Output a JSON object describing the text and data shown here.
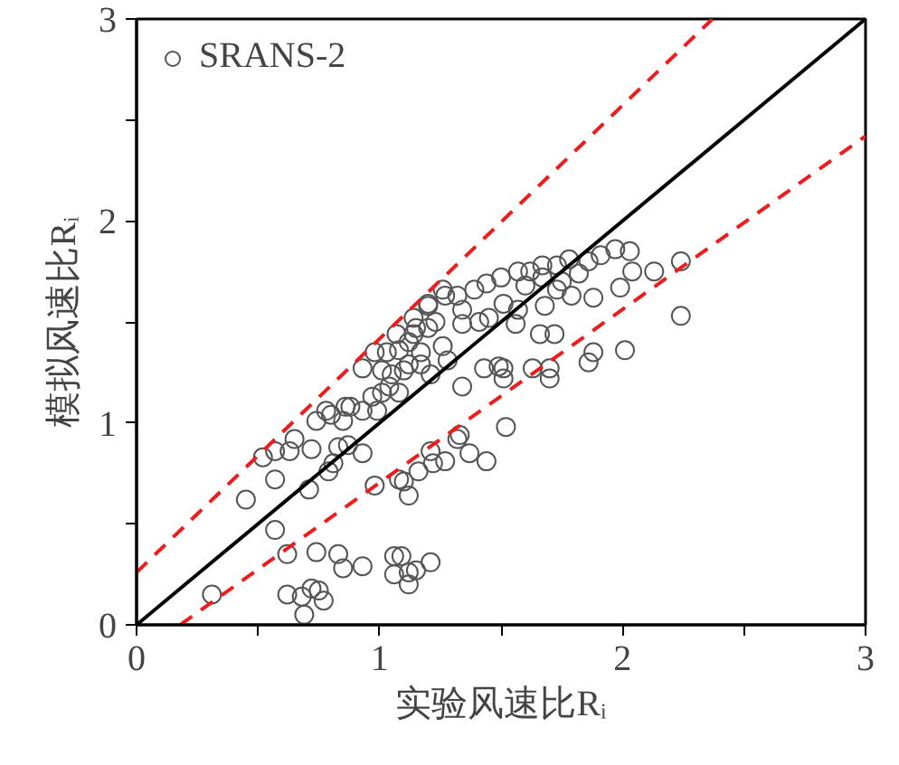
{
  "chart_data": {
    "type": "scatter",
    "xlabel": "实验风速比Rᵢ",
    "ylabel": "模拟风速比Rᵢ",
    "xlim": [
      0,
      3
    ],
    "ylim": [
      0,
      3
    ],
    "xticks": [
      0,
      {
        "value": 0.5,
        "label": null
      },
      1,
      {
        "value": 1.5,
        "label": null
      },
      2,
      {
        "value": 2.5,
        "label": null
      },
      3
    ],
    "yticks": [
      0,
      {
        "value": 0.5,
        "label": null
      },
      1,
      {
        "value": 1.5,
        "label": null
      },
      2,
      {
        "value": 2.5,
        "label": null
      },
      3
    ],
    "grid": false,
    "legend": "top left",
    "series": [
      {
        "name": "SRANS-2",
        "color": "#555555",
        "marker": "circle",
        "x": [
          0.31,
          0.62,
          0.68,
          0.72,
          0.75,
          0.77,
          0.69,
          0.62,
          0.74,
          0.83,
          0.85,
          0.93,
          1.06,
          1.09,
          1.06,
          1.12,
          1.15,
          1.21,
          1.12,
          0.57,
          0.45,
          0.57,
          0.71,
          0.79,
          0.81,
          0.83,
          0.87,
          0.93,
          0.98,
          1.08,
          1.12,
          1.1,
          1.21,
          1.16,
          1.22,
          1.27,
          1.32,
          0.52,
          0.57,
          0.63,
          0.65,
          0.72,
          0.74,
          0.8,
          0.85,
          0.88,
          0.93,
          0.99,
          0.97,
          1.01,
          1.04,
          1.08,
          0.93,
          0.98,
          1.03,
          1.07,
          1.08,
          1.12,
          1.12,
          1.15,
          1.17,
          1.2,
          1.23,
          1.27,
          1.21,
          1.05,
          1.67,
          1.73,
          1.78,
          1.86,
          1.91,
          1.97,
          2.03,
          2.04,
          2.13,
          2.24,
          2.24,
          1.99,
          1.88,
          1.79,
          1.73,
          1.67,
          1.57,
          1.5,
          1.44,
          1.39,
          1.34,
          1.34,
          1.41,
          1.45,
          1.51,
          1.57,
          1.56,
          1.68,
          1.66,
          1.72,
          2.01,
          1.88,
          1.86,
          1.7,
          1.63,
          1.7,
          1.51,
          1.49,
          1.43,
          1.51,
          1.34,
          1.52,
          1.33,
          1.14,
          1.2,
          1.26,
          1.28,
          1.17,
          1.1,
          1.01,
          0.86,
          0.78,
          1.37,
          1.44,
          1.26,
          1.32,
          1.2,
          1.14,
          1.6,
          1.75,
          1.62,
          1.82
        ],
        "values": [
          0.15,
          0.15,
          0.14,
          0.18,
          0.17,
          0.12,
          0.05,
          0.35,
          0.36,
          0.35,
          0.28,
          0.29,
          0.34,
          0.34,
          0.25,
          0.26,
          0.27,
          0.31,
          0.2,
          0.47,
          0.62,
          0.72,
          0.67,
          0.76,
          0.8,
          0.88,
          0.89,
          0.85,
          0.69,
          0.72,
          0.64,
          0.71,
          0.86,
          0.76,
          0.8,
          0.81,
          0.92,
          0.83,
          0.86,
          0.86,
          0.92,
          0.87,
          1.01,
          1.04,
          1.01,
          1.08,
          1.06,
          1.06,
          1.13,
          1.15,
          1.18,
          1.15,
          1.27,
          1.35,
          1.35,
          1.44,
          1.36,
          1.29,
          1.4,
          1.47,
          1.35,
          1.58,
          1.5,
          1.63,
          1.24,
          1.24,
          1.78,
          1.78,
          1.81,
          1.8,
          1.83,
          1.86,
          1.85,
          1.75,
          1.75,
          1.8,
          1.53,
          1.67,
          1.62,
          1.63,
          1.66,
          1.72,
          1.75,
          1.72,
          1.69,
          1.66,
          1.56,
          1.49,
          1.5,
          1.52,
          1.59,
          1.56,
          1.49,
          1.58,
          1.44,
          1.44,
          1.36,
          1.35,
          1.3,
          1.27,
          1.27,
          1.22,
          1.27,
          1.28,
          1.27,
          1.22,
          1.18,
          0.98,
          0.94,
          1.44,
          1.47,
          1.38,
          1.31,
          1.29,
          1.26,
          1.26,
          1.08,
          1.06,
          0.85,
          0.81,
          1.66,
          1.63,
          1.59,
          1.52,
          1.68,
          1.7,
          1.75,
          1.74
        ]
      },
      {
        "type": "line",
        "color": "#000000",
        "line_style": "solid",
        "x": [
          0,
          3
        ],
        "values": [
          0,
          3
        ]
      },
      {
        "type": "line",
        "color": "#ee1c1c",
        "line_style": "dashed",
        "x": [
          0,
          2.37
        ],
        "values": [
          0.26,
          3
        ]
      },
      {
        "type": "line",
        "color": "#ee1c1c",
        "line_style": "dashed",
        "x": [
          0.18,
          3
        ],
        "values": [
          0,
          2.42
        ]
      }
    ]
  }
}
